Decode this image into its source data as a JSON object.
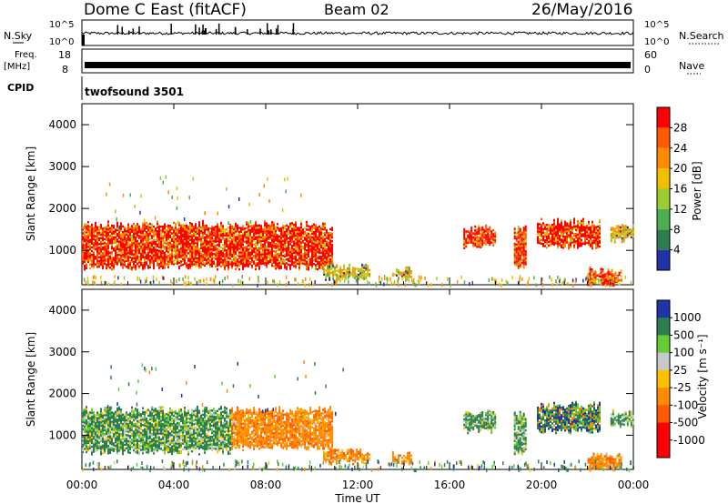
{
  "header": {
    "radar": "Dome C East (fitACF)",
    "beam": "Beam 02",
    "date": "26/May/2016"
  },
  "status": {
    "nsky_label": "N.Sky",
    "nsky_ticks": [
      "10^5",
      "10^0"
    ],
    "nsearch_label": "N.Search",
    "nsearch_ticks": [
      "10^5",
      "10^0"
    ],
    "freq_label": "Freq.",
    "freq_unit": "[MHz]",
    "freq_ticks": [
      "18",
      "8"
    ],
    "nave_label": "Nave",
    "nave_ticks": [
      "60",
      "0"
    ],
    "cpid_label": "CPID",
    "cpid_value": "twofsound 3501"
  },
  "colors": {
    "power_scale": [
      "#0000ff",
      "#2233aa",
      "#2e7d4f",
      "#4caf50",
      "#9acd32",
      "#f0c000",
      "#ff8c00",
      "#ff5a00",
      "#ff0000"
    ],
    "velocity_scale": [
      "#ff0000",
      "#ff5a00",
      "#ff8c00",
      "#ffc000",
      "#c8c8c8",
      "#66cc33",
      "#2e7d4f",
      "#2233aa"
    ]
  },
  "chart_data": [
    {
      "type": "heatmap",
      "name": "power",
      "xlabel": "",
      "ylabel": "Slant Range [km]",
      "ylim": [
        180,
        4500
      ],
      "xlim": [
        0,
        24
      ],
      "yticks": [
        "1000",
        "2000",
        "3000",
        "4000"
      ],
      "colorbar": {
        "label": "Power [dB]",
        "ticks": [
          "4",
          "8",
          "12",
          "16",
          "20",
          "24",
          "28"
        ],
        "range": [
          0,
          32
        ]
      },
      "echo_regions": [
        {
          "t0": 0.0,
          "t1": 10.9,
          "r0": 600,
          "r1": 1600,
          "level": "high"
        },
        {
          "t0": 10.5,
          "t1": 12.5,
          "r0": 350,
          "r1": 600,
          "level": "mid"
        },
        {
          "t0": 13.5,
          "t1": 14.3,
          "r0": 350,
          "r1": 520,
          "level": "mid"
        },
        {
          "t0": 16.6,
          "t1": 18.0,
          "r0": 1100,
          "r1": 1500,
          "level": "high"
        },
        {
          "t0": 18.8,
          "t1": 19.3,
          "r0": 600,
          "r1": 1500,
          "level": "high"
        },
        {
          "t0": 19.8,
          "t1": 22.5,
          "r0": 1100,
          "r1": 1650,
          "level": "high"
        },
        {
          "t0": 23.0,
          "t1": 24.0,
          "r0": 1250,
          "r1": 1550,
          "level": "mid"
        },
        {
          "t0": 22.0,
          "t1": 23.5,
          "r0": 200,
          "r1": 500,
          "level": "high"
        }
      ]
    },
    {
      "type": "heatmap",
      "name": "velocity",
      "xlabel": "Time UT",
      "ylabel": "Slant Range [km]",
      "ylim": [
        180,
        4500
      ],
      "xlim": [
        0,
        24
      ],
      "xticks": [
        "00:00",
        "04:00",
        "08:00",
        "12:00",
        "16:00",
        "20:00",
        "00:00"
      ],
      "yticks": [
        "1000",
        "2000",
        "3000",
        "4000"
      ],
      "colorbar": {
        "label": "Velocity [m s⁻¹]",
        "ticks": [
          "1000",
          "500",
          "100",
          "25",
          "-25",
          "-100",
          "-500",
          "-1000"
        ]
      },
      "echo_regions": [
        {
          "t0": 0.0,
          "t1": 6.5,
          "r0": 600,
          "r1": 1600,
          "level": "toward"
        },
        {
          "t0": 6.5,
          "t1": 10.9,
          "r0": 700,
          "r1": 1600,
          "level": "away"
        },
        {
          "t0": 10.5,
          "t1": 12.5,
          "r0": 350,
          "r1": 600,
          "level": "away"
        },
        {
          "t0": 13.5,
          "t1": 14.3,
          "r0": 350,
          "r1": 520,
          "level": "away"
        },
        {
          "t0": 16.6,
          "t1": 18.0,
          "r0": 1100,
          "r1": 1500,
          "level": "toward"
        },
        {
          "t0": 18.8,
          "t1": 19.3,
          "r0": 600,
          "r1": 1500,
          "level": "toward"
        },
        {
          "t0": 19.8,
          "t1": 22.5,
          "r0": 1100,
          "r1": 1700,
          "level": "mixed"
        },
        {
          "t0": 23.0,
          "t1": 24.0,
          "r0": 1250,
          "r1": 1550,
          "level": "toward"
        },
        {
          "t0": 22.0,
          "t1": 23.5,
          "r0": 200,
          "r1": 500,
          "level": "away"
        }
      ]
    }
  ]
}
